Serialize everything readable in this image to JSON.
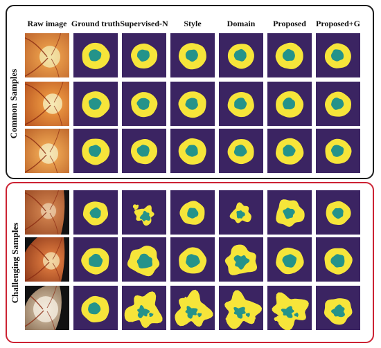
{
  "columns": [
    "Raw image",
    "Ground truth",
    "Supervised-N",
    "Style",
    "Domain",
    "Proposed",
    "Proposed+G"
  ],
  "groups": [
    {
      "label": "Common Samples",
      "border_color": "#1b1b1b"
    },
    {
      "label": "Challenging Samples",
      "border_color": "#cc2233"
    }
  ],
  "colors": {
    "background": "#3b2462",
    "disc": "#f6e53a",
    "cup": "#24938a",
    "outer_border_common": "#1b1b1b",
    "outer_border_challenging": "#cc2233"
  }
}
